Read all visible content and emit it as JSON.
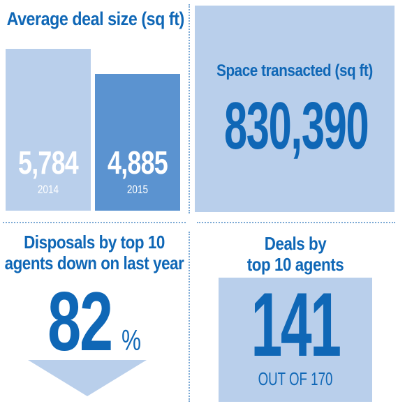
{
  "colors": {
    "accent": "#0f67b6",
    "bar_2014": "#b9cfeb",
    "bar_2015": "#5b93d0",
    "box_fill": "#b9cfeb",
    "divider": "#7aa8d4"
  },
  "avg_deal": {
    "title": "Average deal size (sq ft)"
  },
  "chart_data": {
    "type": "bar",
    "title": "Average deal size (sq ft)",
    "categories": [
      "2014",
      "2015"
    ],
    "values": [
      5784,
      4885
    ],
    "value_labels": [
      "5,784",
      "4,885"
    ],
    "colors": [
      "#b9cfeb",
      "#5b93d0"
    ],
    "ylim": [
      0,
      5784
    ],
    "grid": false
  },
  "space": {
    "title": "Space transacted  (sq ft)",
    "value": "830,390"
  },
  "disposals": {
    "title_line1": "Disposals by top 10",
    "title_line2": "agents down on last year",
    "value": "82",
    "unit": "%",
    "arrow_icon": "down-arrow-icon"
  },
  "deals": {
    "title_line1": "Deals by",
    "title_line2": "top 10 agents",
    "value": "141",
    "sub": "OUT OF 170"
  }
}
